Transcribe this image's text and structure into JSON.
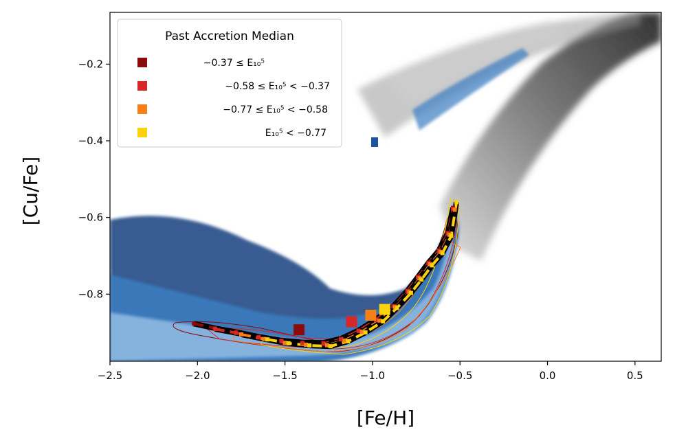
{
  "chart_data": {
    "type": "scatter",
    "title": "",
    "xlabel": "[Fe/H]",
    "ylabel": "[Cu/Fe]",
    "xlim": [
      -2.5,
      0.65
    ],
    "ylim": [
      -0.975,
      -0.065
    ],
    "xticks": [
      -2.5,
      -2.0,
      -1.5,
      -1.0,
      -0.5,
      0.0,
      0.5
    ],
    "xtick_labels": [
      "−2.5",
      "−2.0",
      "−1.5",
      "−1.0",
      "−0.5",
      "0.0",
      "0.5"
    ],
    "yticks": [
      -0.2,
      -0.4,
      -0.6,
      -0.8
    ],
    "ytick_labels": [
      "−0.2",
      "−0.4",
      "−0.6",
      "−0.8"
    ],
    "legend": {
      "title": "Past Accretion Median",
      "location": "top-left",
      "entries": [
        {
          "label": "−0.37 ≤ E₁₀⁵",
          "color": "#8b0a0a"
        },
        {
          "label": "−0.58 ≤ E₁₀⁵ < −0.37",
          "color": "#d62828"
        },
        {
          "label": "−0.77 ≤ E₁₀⁵ < −0.58",
          "color": "#f77f17"
        },
        {
          "label": "E₁₀⁵ < −0.77",
          "color": "#fcd20b"
        }
      ]
    },
    "series": [
      {
        "name": "−0.37 ≤ E₁₀⁵",
        "color": "#8b0a0a",
        "x": [
          -2.02,
          -1.9,
          -1.78,
          -1.65,
          -1.52,
          -1.4,
          -1.28,
          -1.18,
          -1.08,
          -0.98,
          -0.88,
          -0.8,
          -0.74,
          -0.68,
          -0.62,
          -0.57,
          -0.54
        ],
        "y": [
          -0.877,
          -0.889,
          -0.899,
          -0.911,
          -0.921,
          -0.926,
          -0.927,
          -0.916,
          -0.895,
          -0.866,
          -0.831,
          -0.791,
          -0.755,
          -0.718,
          -0.686,
          -0.64,
          -0.575
        ],
        "median_marker": [
          -1.42,
          -0.893
        ]
      },
      {
        "name": "−0.58 ≤ E₁₀⁵ < −0.37",
        "color": "#d62828",
        "x": [
          -1.9,
          -1.78,
          -1.65,
          -1.52,
          -1.4,
          -1.28,
          -1.18,
          -1.08,
          -0.98,
          -0.88,
          -0.8,
          -0.74,
          -0.68,
          -0.62,
          -0.57,
          -0.54
        ],
        "y": [
          -0.891,
          -0.901,
          -0.913,
          -0.923,
          -0.929,
          -0.929,
          -0.918,
          -0.896,
          -0.867,
          -0.832,
          -0.792,
          -0.756,
          -0.719,
          -0.687,
          -0.642,
          -0.577
        ],
        "median_marker": [
          -1.12,
          -0.872
        ]
      },
      {
        "name": "−0.77 ≤ E₁₀⁵ < −0.58",
        "color": "#f77f17",
        "x": [
          -1.75,
          -1.62,
          -1.5,
          -1.38,
          -1.26,
          -1.16,
          -1.06,
          -0.96,
          -0.87,
          -0.79,
          -0.73,
          -0.67,
          -0.61,
          -0.56,
          -0.53
        ],
        "y": [
          -0.905,
          -0.917,
          -0.927,
          -0.932,
          -0.933,
          -0.921,
          -0.898,
          -0.869,
          -0.834,
          -0.795,
          -0.759,
          -0.722,
          -0.69,
          -0.645,
          -0.58
        ],
        "median_marker": [
          -1.01,
          -0.855
        ]
      },
      {
        "name": "E₁₀⁵ < −0.77",
        "color": "#fcd20b",
        "x": [
          -1.6,
          -1.48,
          -1.36,
          -1.24,
          -1.14,
          -1.04,
          -0.94,
          -0.86,
          -0.78,
          -0.72,
          -0.66,
          -0.6,
          -0.55,
          -0.52
        ],
        "y": [
          -0.918,
          -0.928,
          -0.934,
          -0.936,
          -0.923,
          -0.9,
          -0.871,
          -0.836,
          -0.797,
          -0.762,
          -0.725,
          -0.693,
          -0.648,
          -0.56
        ],
        "median_marker": [
          -0.93,
          -0.84
        ]
      }
    ],
    "background": "2D density histogram of stars: blue (accreted) and grey (in-situ) populations",
    "contours": "thin colored contour lines around each median track"
  }
}
